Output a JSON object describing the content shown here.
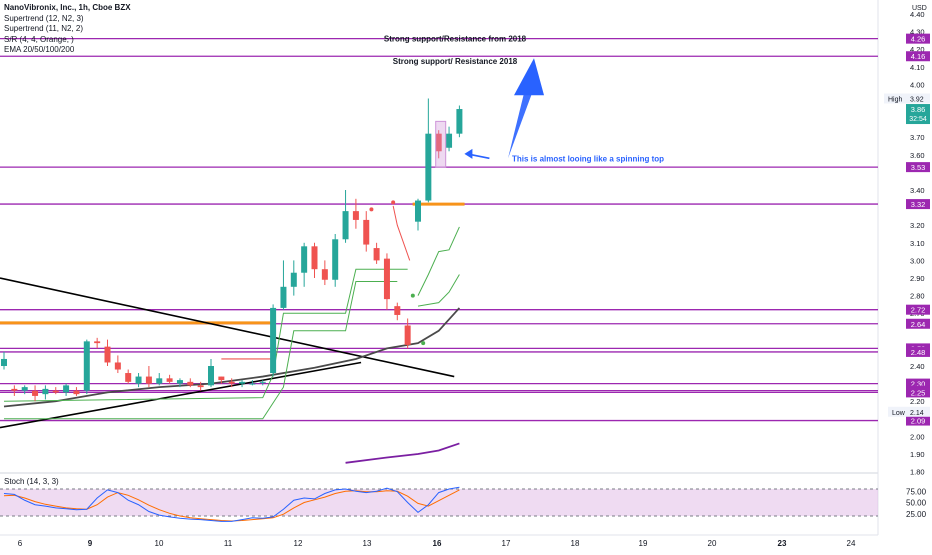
{
  "chart_data": {
    "type": "candlestick",
    "symbol": "NanoVibronix, Inc., 1h, Cboe BZX",
    "indicators": [
      "Supertrend (12, N2, 3)",
      "Supertrend (11, N2, 2)",
      "S/R (4, 4, Orange, )",
      "EMA 20/50/100/200"
    ],
    "currency": "USD",
    "price_axis": {
      "range": [
        1.78,
        4.4
      ],
      "ticks": [
        "4.40",
        "4.30",
        "4.20",
        "4.10",
        "4.00",
        "3.80",
        "3.70",
        "3.60",
        "3.40",
        "3.20",
        "3.10",
        "3.00",
        "2.90",
        "2.80",
        "2.70",
        "2.40",
        "2.20",
        "2.00",
        "1.90",
        "1.80"
      ]
    },
    "time_axis": {
      "labels": [
        "6",
        "9",
        "10",
        "11",
        "12",
        "13",
        "16",
        "17",
        "18",
        "19",
        "20",
        "23",
        "24"
      ],
      "bold": [
        "9",
        "16",
        "23"
      ]
    },
    "horizontal_levels": [
      {
        "price": 4.26,
        "label": "4.26",
        "color": "#9c27b0"
      },
      {
        "price": 4.16,
        "label": "4.16",
        "color": "#9c27b0"
      },
      {
        "price": 3.53,
        "label": "3.53",
        "color": "#9c27b0"
      },
      {
        "price": 3.32,
        "label": "3.32",
        "color": "#9c27b0"
      },
      {
        "price": 2.72,
        "label": "2.72",
        "color": "#9c27b0"
      },
      {
        "price": 2.64,
        "label": "2.64",
        "color": "#9c27b0"
      },
      {
        "price": 2.5,
        "label": "2.50",
        "color": "#9c27b0"
      },
      {
        "price": 2.48,
        "label": "2.48",
        "color": "#9c27b0"
      },
      {
        "price": 2.3,
        "label": "2.30",
        "color": "#9c27b0"
      },
      {
        "price": 2.26,
        "label": "2.26",
        "color": "#9c27b0"
      },
      {
        "price": 2.25,
        "label": "2.25",
        "color": "#9c27b0"
      },
      {
        "price": 2.09,
        "label": "2.09",
        "color": "#9c27b0"
      }
    ],
    "price_tags": {
      "high": {
        "label": "High",
        "value": "3.92",
        "price": 3.92
      },
      "last": {
        "value": "3.86",
        "countdown": "32:54",
        "price": 3.86,
        "color": "#26a69a"
      },
      "low": {
        "label": "Low",
        "value": "2.14",
        "price": 2.14
      }
    },
    "candles": [
      {
        "t": 0,
        "o": 2.4,
        "h": 2.48,
        "l": 2.38,
        "c": 2.44
      },
      {
        "t": 1,
        "o": 2.27,
        "h": 2.29,
        "l": 2.23,
        "c": 2.26
      },
      {
        "t": 2,
        "o": 2.26,
        "h": 2.29,
        "l": 2.24,
        "c": 2.28
      },
      {
        "t": 3,
        "o": 2.26,
        "h": 2.29,
        "l": 2.2,
        "c": 2.23
      },
      {
        "t": 4,
        "o": 2.24,
        "h": 2.29,
        "l": 2.21,
        "c": 2.27
      },
      {
        "t": 5,
        "o": 2.26,
        "h": 2.28,
        "l": 2.24,
        "c": 2.25
      },
      {
        "t": 6,
        "o": 2.25,
        "h": 2.3,
        "l": 2.23,
        "c": 2.29
      },
      {
        "t": 7,
        "o": 2.26,
        "h": 2.28,
        "l": 2.23,
        "c": 2.24
      },
      {
        "t": 8,
        "o": 2.26,
        "h": 2.55,
        "l": 2.24,
        "c": 2.54
      },
      {
        "t": 9,
        "o": 2.54,
        "h": 2.56,
        "l": 2.5,
        "c": 2.53
      },
      {
        "t": 10,
        "o": 2.51,
        "h": 2.55,
        "l": 2.4,
        "c": 2.42
      },
      {
        "t": 11,
        "o": 2.42,
        "h": 2.46,
        "l": 2.36,
        "c": 2.38
      },
      {
        "t": 12,
        "o": 2.36,
        "h": 2.38,
        "l": 2.3,
        "c": 2.31
      },
      {
        "t": 13,
        "o": 2.3,
        "h": 2.36,
        "l": 2.28,
        "c": 2.34
      },
      {
        "t": 14,
        "o": 2.34,
        "h": 2.4,
        "l": 2.28,
        "c": 2.3
      },
      {
        "t": 15,
        "o": 2.3,
        "h": 2.36,
        "l": 2.29,
        "c": 2.33
      },
      {
        "t": 16,
        "o": 2.33,
        "h": 2.35,
        "l": 2.3,
        "c": 2.31
      },
      {
        "t": 17,
        "o": 2.3,
        "h": 2.33,
        "l": 2.28,
        "c": 2.32
      },
      {
        "t": 18,
        "o": 2.31,
        "h": 2.33,
        "l": 2.28,
        "c": 2.29
      },
      {
        "t": 19,
        "o": 2.29,
        "h": 2.31,
        "l": 2.26,
        "c": 2.28
      },
      {
        "t": 20,
        "o": 2.29,
        "h": 2.44,
        "l": 2.28,
        "c": 2.4
      },
      {
        "t": 21,
        "o": 2.34,
        "h": 2.34,
        "l": 2.3,
        "c": 2.32
      },
      {
        "t": 22,
        "o": 2.31,
        "h": 2.33,
        "l": 2.28,
        "c": 2.3
      },
      {
        "t": 23,
        "o": 2.3,
        "h": 2.32,
        "l": 2.28,
        "c": 2.31
      },
      {
        "t": 24,
        "o": 2.3,
        "h": 2.32,
        "l": 2.29,
        "c": 2.3
      },
      {
        "t": 25,
        "o": 2.31,
        "h": 2.32,
        "l": 2.29,
        "c": 2.31
      },
      {
        "t": 26,
        "o": 2.36,
        "h": 2.75,
        "l": 2.34,
        "c": 2.73
      },
      {
        "t": 27,
        "o": 2.73,
        "h": 3.0,
        "l": 2.72,
        "c": 2.85
      },
      {
        "t": 28,
        "o": 2.85,
        "h": 3.0,
        "l": 2.8,
        "c": 2.93
      },
      {
        "t": 29,
        "o": 2.93,
        "h": 3.1,
        "l": 2.85,
        "c": 3.08
      },
      {
        "t": 30,
        "o": 3.08,
        "h": 3.1,
        "l": 2.9,
        "c": 2.95
      },
      {
        "t": 31,
        "o": 2.95,
        "h": 3.0,
        "l": 2.86,
        "c": 2.89
      },
      {
        "t": 32,
        "o": 2.89,
        "h": 3.15,
        "l": 2.85,
        "c": 3.12
      },
      {
        "t": 33,
        "o": 3.12,
        "h": 3.4,
        "l": 3.1,
        "c": 3.28
      },
      {
        "t": 34,
        "o": 3.28,
        "h": 3.35,
        "l": 3.18,
        "c": 3.23
      },
      {
        "t": 35,
        "o": 3.23,
        "h": 3.28,
        "l": 3.05,
        "c": 3.09
      },
      {
        "t": 36,
        "o": 3.07,
        "h": 3.1,
        "l": 2.98,
        "c": 3.0
      },
      {
        "t": 37,
        "o": 3.01,
        "h": 3.04,
        "l": 2.72,
        "c": 2.78
      },
      {
        "t": 38,
        "o": 2.74,
        "h": 2.76,
        "l": 2.66,
        "c": 2.69
      },
      {
        "t": 39,
        "o": 2.63,
        "h": 2.67,
        "l": 2.5,
        "c": 2.52
      },
      {
        "t": 40,
        "o": 3.22,
        "h": 3.35,
        "l": 3.17,
        "c": 3.34
      },
      {
        "t": 41,
        "o": 3.34,
        "h": 3.92,
        "l": 3.33,
        "c": 3.72
      },
      {
        "t": 42,
        "o": 3.72,
        "h": 3.74,
        "l": 3.58,
        "c": 3.62
      },
      {
        "t": 43,
        "o": 3.64,
        "h": 3.76,
        "l": 3.62,
        "c": 3.72
      },
      {
        "t": 44,
        "o": 3.72,
        "h": 3.88,
        "l": 3.7,
        "c": 3.86
      }
    ],
    "annotations": {
      "resistance_2018_upper": "Strong support/Resistance from 2018",
      "resistance_2018_lower": "Strong support/ Resistance 2018",
      "spinning_top": "This is almost looing like a spinning top"
    },
    "stoch": {
      "label": "Stoch (14, 3, 3)",
      "range": [
        0,
        100
      ],
      "ticks": [
        "75.00",
        "50.00",
        "25.00"
      ],
      "overbought": 80,
      "oversold": 20,
      "k": [
        70,
        68,
        55,
        45,
        42,
        38,
        36,
        34,
        35,
        60,
        78,
        72,
        55,
        45,
        30,
        22,
        18,
        15,
        13,
        12,
        10,
        8,
        8,
        12,
        16,
        15,
        18,
        35,
        55,
        60,
        58,
        70,
        78,
        80,
        75,
        72,
        75,
        82,
        74,
        50,
        28,
        45,
        72,
        80,
        84
      ],
      "d": [
        65,
        66,
        60,
        52,
        46,
        42,
        38,
        36,
        35,
        45,
        62,
        72,
        66,
        56,
        44,
        34,
        26,
        20,
        16,
        14,
        12,
        10,
        9,
        10,
        12,
        14,
        16,
        24,
        38,
        50,
        56,
        62,
        70,
        75,
        76,
        74,
        74,
        76,
        75,
        64,
        48,
        42,
        54,
        66,
        78
      ]
    }
  }
}
